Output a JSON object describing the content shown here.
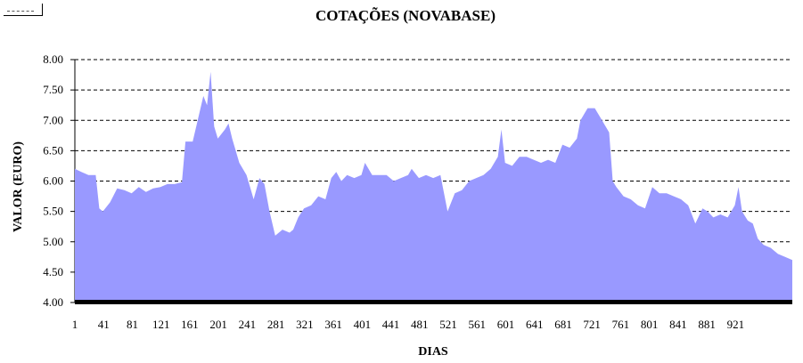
{
  "chart_data": {
    "type": "area",
    "title": "COTAÇÕES (NOVABASE)",
    "xlabel": "DIAS",
    "ylabel": "VALOR (EURO)",
    "ylim": [
      4.0,
      8.0
    ],
    "xlim": [
      1,
      1000
    ],
    "yticks": [
      "4.00",
      "4.50",
      "5.00",
      "5.50",
      "6.00",
      "6.50",
      "7.00",
      "7.50",
      "8.00"
    ],
    "xticks": [
      "1",
      "41",
      "81",
      "121",
      "161",
      "201",
      "241",
      "281",
      "321",
      "361",
      "401",
      "441",
      "481",
      "521",
      "561",
      "601",
      "641",
      "681",
      "721",
      "761",
      "801",
      "841",
      "881",
      "921"
    ],
    "grid": "horizontal dashed",
    "fill_color": "#9999ff",
    "baseline_color": "#000000",
    "series": [
      {
        "x": [
          1,
          10,
          20,
          30,
          35,
          40,
          50,
          60,
          70,
          80,
          90,
          100,
          110,
          120,
          130,
          140,
          150,
          155,
          165,
          170,
          180,
          185,
          190,
          195,
          200,
          210,
          215,
          220,
          230,
          240,
          245,
          250,
          258,
          265,
          272,
          280,
          290,
          300,
          305,
          312,
          320,
          330,
          340,
          350,
          358,
          365,
          372,
          380,
          390,
          400,
          405,
          415,
          425,
          435,
          445,
          455,
          465,
          470,
          480,
          490,
          500,
          510,
          520,
          530,
          540,
          550,
          560,
          570,
          580,
          590,
          595,
          600,
          610,
          620,
          630,
          640,
          650,
          660,
          670,
          680,
          690,
          700,
          705,
          715,
          725,
          735,
          745,
          750,
          755,
          765,
          775,
          785,
          795,
          805,
          815,
          825,
          835,
          845,
          855,
          865,
          875,
          882,
          890,
          900,
          910,
          920,
          925,
          930,
          938,
          945,
          952,
          960,
          970,
          980,
          990,
          1000
        ],
        "y": [
          6.2,
          6.15,
          6.1,
          6.1,
          5.55,
          5.5,
          5.65,
          5.88,
          5.85,
          5.8,
          5.9,
          5.82,
          5.88,
          5.9,
          5.95,
          5.95,
          5.98,
          6.65,
          6.65,
          6.9,
          7.4,
          7.25,
          7.8,
          6.9,
          6.7,
          6.85,
          6.95,
          6.7,
          6.3,
          6.1,
          5.9,
          5.7,
          6.05,
          5.95,
          5.5,
          5.1,
          5.2,
          5.15,
          5.2,
          5.4,
          5.55,
          5.6,
          5.75,
          5.7,
          6.05,
          6.15,
          6.0,
          6.1,
          6.05,
          6.1,
          6.3,
          6.1,
          6.1,
          6.1,
          6.0,
          6.05,
          6.1,
          6.2,
          6.05,
          6.1,
          6.05,
          6.1,
          5.5,
          5.8,
          5.85,
          6.0,
          6.05,
          6.1,
          6.2,
          6.4,
          6.85,
          6.3,
          6.25,
          6.4,
          6.4,
          6.35,
          6.3,
          6.35,
          6.3,
          6.6,
          6.55,
          6.7,
          7.0,
          7.2,
          7.2,
          7.0,
          6.8,
          6.0,
          5.9,
          5.75,
          5.7,
          5.6,
          5.55,
          5.9,
          5.8,
          5.8,
          5.75,
          5.7,
          5.6,
          5.3,
          5.55,
          5.5,
          5.4,
          5.45,
          5.4,
          5.6,
          5.9,
          5.5,
          5.35,
          5.3,
          5.05,
          4.95,
          4.9,
          4.8,
          4.75,
          4.7
        ]
      }
    ]
  }
}
